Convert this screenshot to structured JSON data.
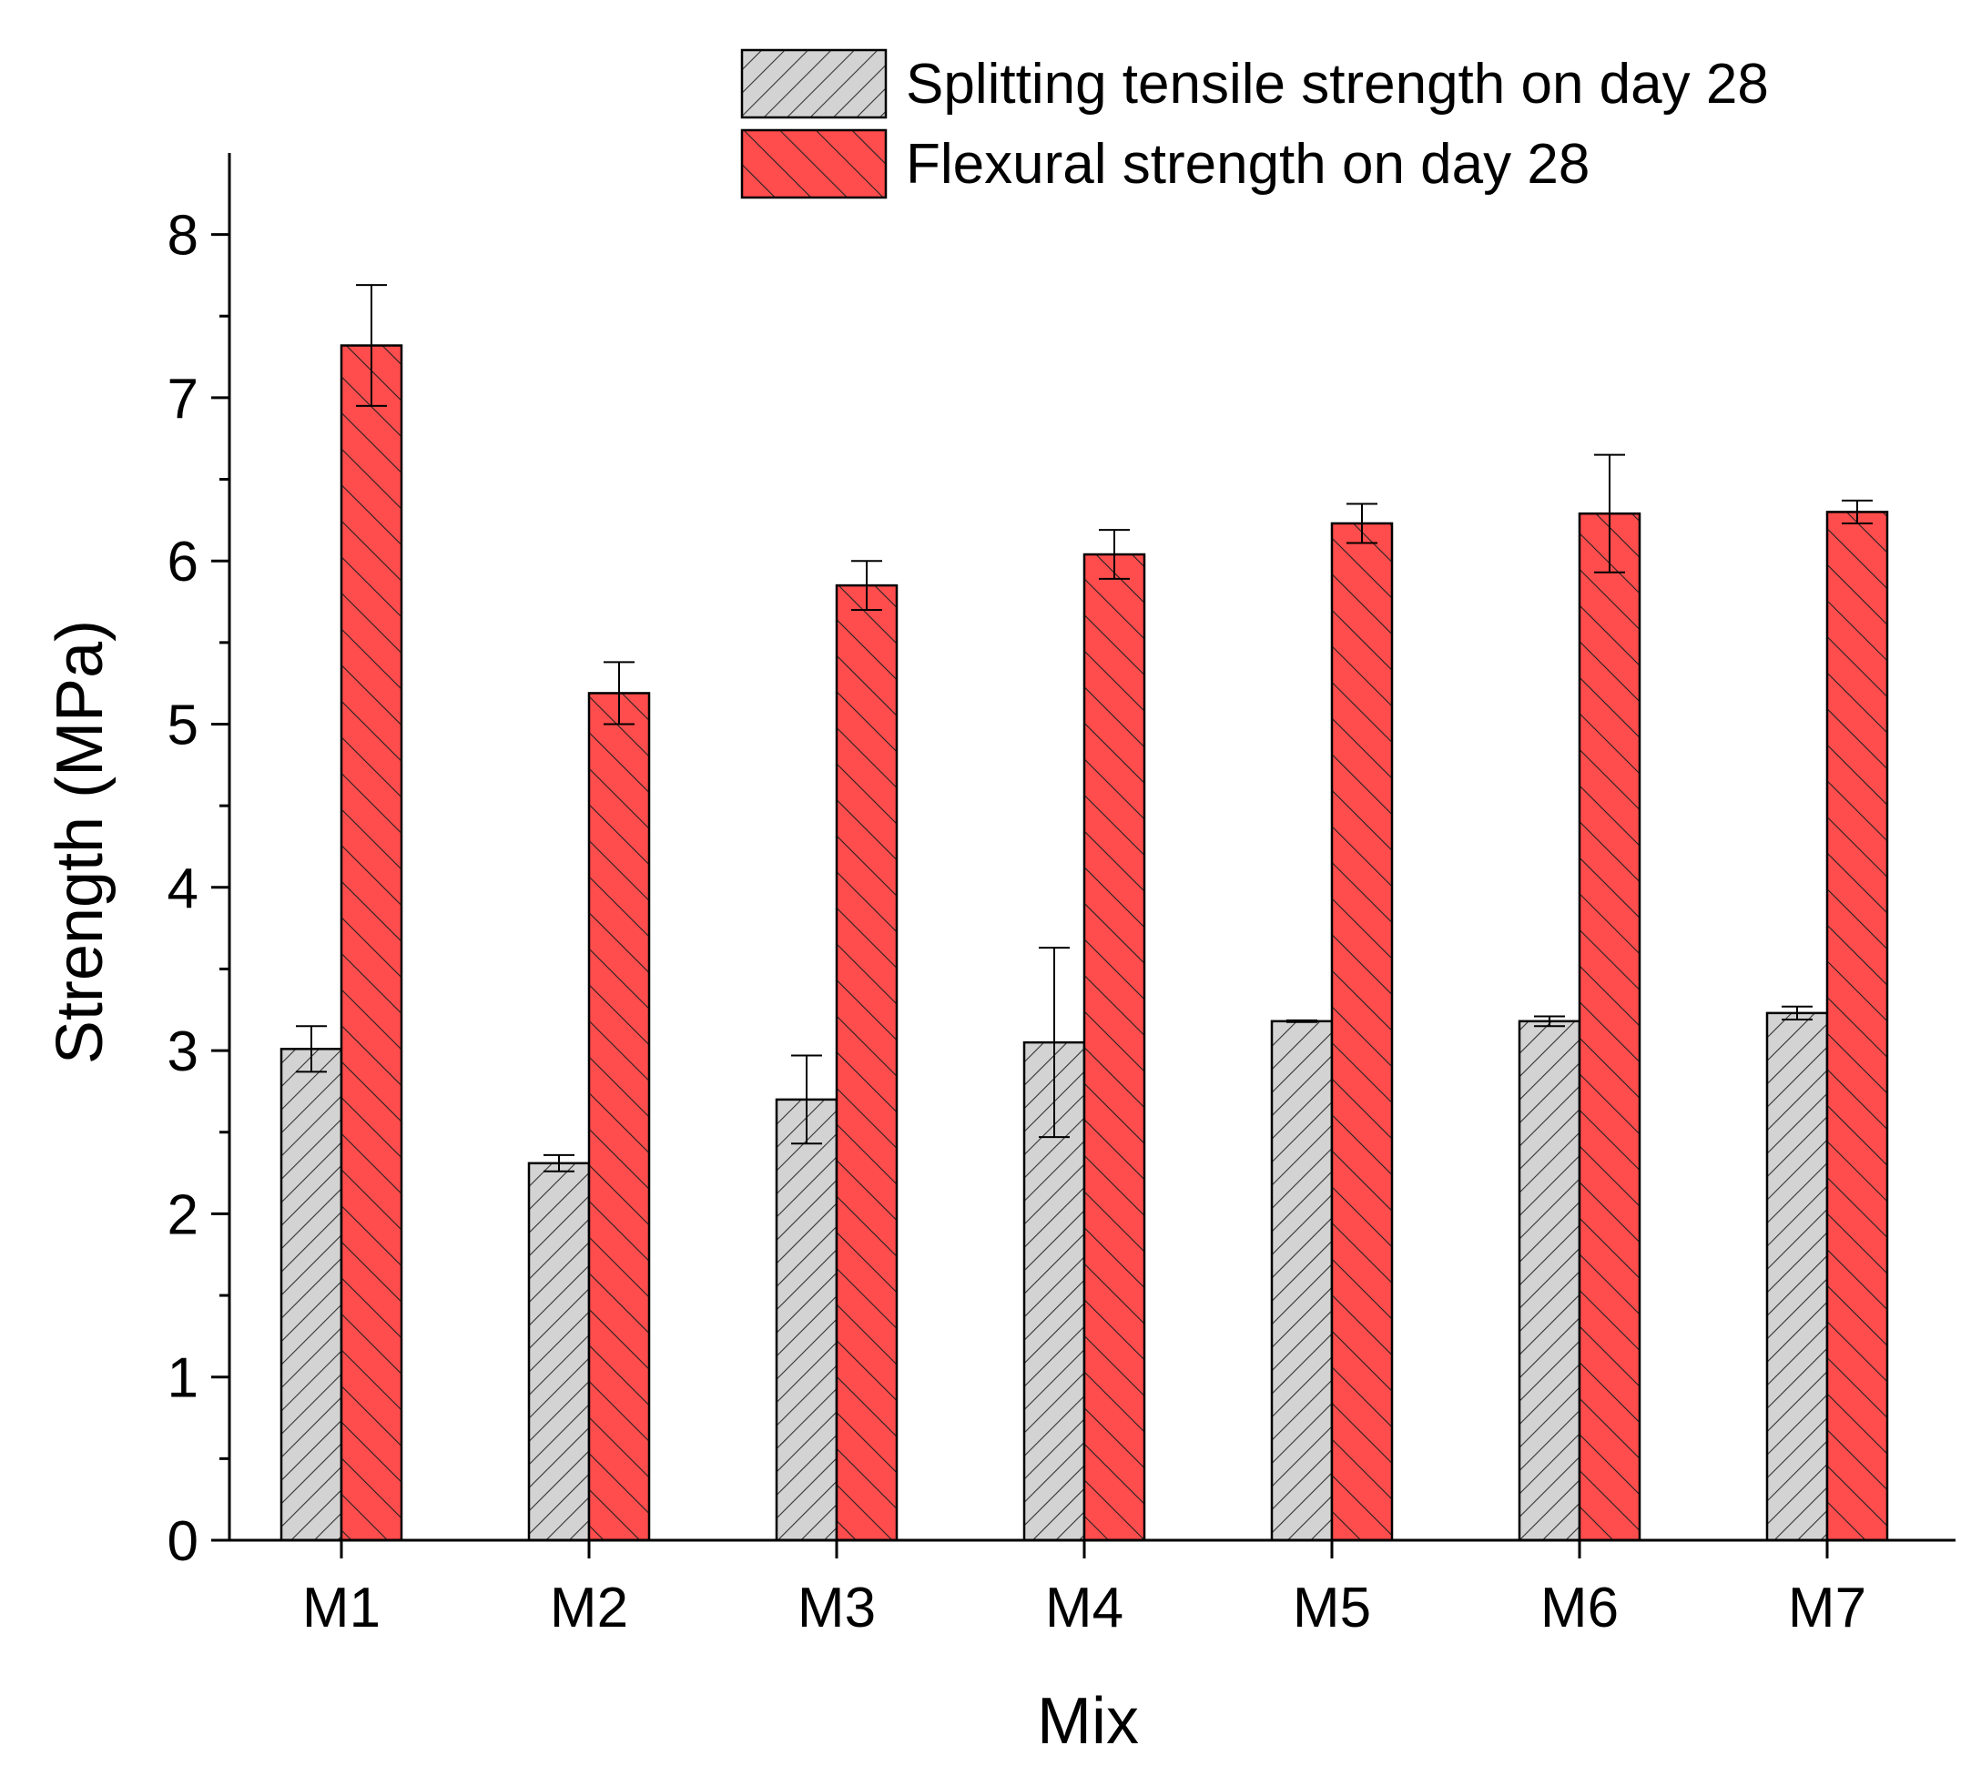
{
  "chart_data": {
    "type": "bar",
    "title": "",
    "xlabel": "Mix",
    "ylabel": "Strength (MPa)",
    "ylim": [
      0,
      8.5
    ],
    "yticks": [
      0,
      1,
      2,
      3,
      4,
      5,
      6,
      7,
      8
    ],
    "categories": [
      "M1",
      "M2",
      "M3",
      "M4",
      "M5",
      "M6",
      "M7"
    ],
    "series": [
      {
        "name": "Splitting tensile strength on day 28",
        "color": "#d3d3d3",
        "hatch": "forward-diagonal",
        "values": [
          3.01,
          2.31,
          2.7,
          3.05,
          3.18,
          3.18,
          3.23
        ],
        "errors": [
          0.14,
          0.05,
          0.27,
          0.58,
          0.005,
          0.03,
          0.04
        ]
      },
      {
        "name": "Flexural strength on day 28",
        "color": "#ff4c4c",
        "hatch": "back-diagonal",
        "values": [
          7.32,
          5.19,
          5.85,
          6.04,
          6.23,
          6.29,
          6.3
        ],
        "errors": [
          0.37,
          0.19,
          0.15,
          0.15,
          0.12,
          0.36,
          0.07
        ]
      }
    ],
    "legend_position": "top-right",
    "grid": false
  }
}
